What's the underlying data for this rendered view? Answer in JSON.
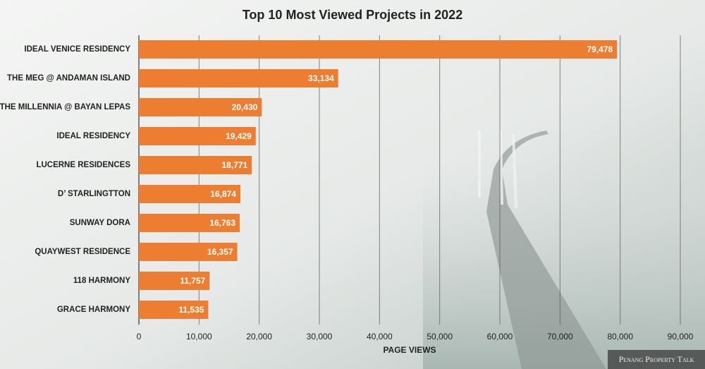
{
  "chart_data": {
    "type": "bar",
    "orientation": "horizontal",
    "title": "Top 10 Most Viewed Projects in 2022",
    "x_label": "PAGE VIEWS",
    "categories": [
      "IDEAL VENICE RESIDENCY",
      "THE MEG @ ANDAMAN ISLAND",
      "THE MILLENNIA @ BAYAN LEPAS",
      "IDEAL RESIDENCY",
      "LUCERNE RESIDENCES",
      "D’ STARLINGTTON",
      "SUNWAY DORA",
      "QUAYWEST RESIDENCE",
      "118 HARMONY",
      "GRACE HARMONY"
    ],
    "values": [
      79478,
      33134,
      20430,
      19429,
      18771,
      16874,
      16763,
      16357,
      11757,
      11535
    ],
    "value_labels": [
      "79,478",
      "33,134",
      "20,430",
      "19,429",
      "18,771",
      "16,874",
      "16,763",
      "16,357",
      "11,757",
      "11,535"
    ],
    "color": "#ed7d31",
    "xlim": [
      0,
      90000
    ],
    "xticks": [
      0,
      {
        "value": 10000,
        "label": "10,000"
      },
      {
        "value": 20000,
        "label": "20,000"
      },
      {
        "value": 30000,
        "label": "30,000"
      },
      {
        "value": 40000,
        "label": "40,000"
      },
      {
        "value": 50000,
        "label": "50,000"
      },
      {
        "value": 60000,
        "label": "60,000"
      },
      {
        "value": 70000,
        "label": "70,000"
      },
      {
        "value": 80000,
        "label": "80,000"
      },
      {
        "value": 90000,
        "label": "90,000"
      }
    ],
    "grid": true,
    "watermark": "Penang Property Talk"
  }
}
